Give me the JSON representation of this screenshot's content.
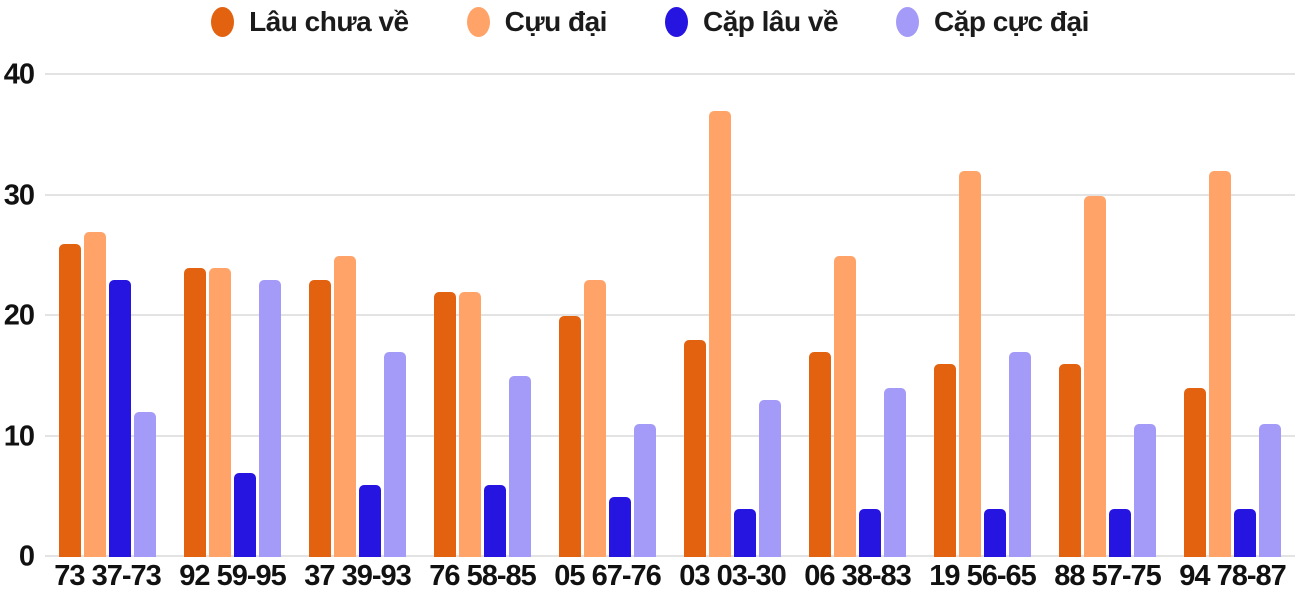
{
  "chart_data": {
    "type": "bar",
    "title": "",
    "xlabel": "",
    "ylabel": "",
    "ylim": [
      0,
      40
    ],
    "yticks": [
      0,
      10,
      20,
      30,
      40
    ],
    "grid": true,
    "legend_position": "top",
    "categories": [
      "73 37-73",
      "92 59-95",
      "37 39-93",
      "76 58-85",
      "05 67-76",
      "03 03-30",
      "06 38-83",
      "19 56-65",
      "88 57-75",
      "94 78-87"
    ],
    "series": [
      {
        "name": "Lâu chưa về",
        "color": "#E2620F",
        "values": [
          26,
          24,
          23,
          22,
          20,
          18,
          17,
          16,
          16,
          14
        ]
      },
      {
        "name": "Cựu đại",
        "color": "#FFA368",
        "values": [
          27,
          24,
          25,
          22,
          23,
          37,
          25,
          32,
          30,
          32
        ]
      },
      {
        "name": "Cặp lâu về",
        "color": "#2614E0",
        "values": [
          23,
          7,
          6,
          6,
          5,
          4,
          4,
          4,
          4,
          4
        ]
      },
      {
        "name": "Cặp cực đại",
        "color": "#A39BF7",
        "values": [
          12,
          23,
          17,
          15,
          11,
          13,
          14,
          17,
          11,
          11
        ]
      }
    ]
  },
  "colors": {
    "background": "#FFFFFF",
    "text": "#111111",
    "gridline": "#E3E3E3"
  }
}
